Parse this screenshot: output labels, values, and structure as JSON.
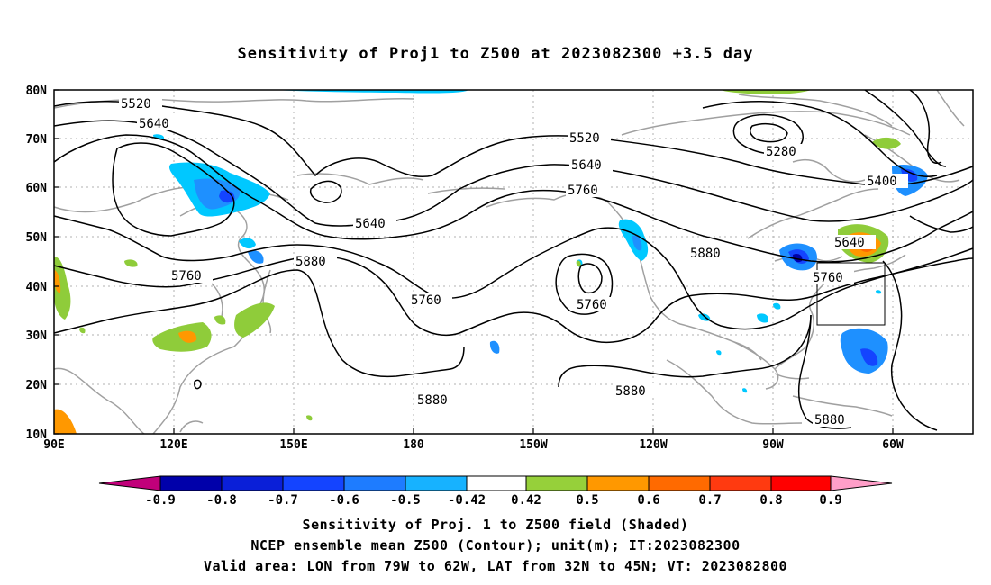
{
  "title": "Sensitivity of Proj1 to Z500 at 2023082300 +3.5 day",
  "axes": {
    "lat_labels": [
      "80N",
      "70N",
      "60N",
      "50N",
      "40N",
      "30N",
      "20N",
      "10N"
    ],
    "lon_labels": [
      "90E",
      "120E",
      "150E",
      "180",
      "150W",
      "120W",
      "90W",
      "60W"
    ]
  },
  "contour_labels": [
    "5520",
    "5640",
    "5520",
    "5640",
    "5280",
    "5400",
    "5760",
    "5640",
    "5640",
    "5760",
    "5880",
    "5760",
    "5760",
    "5880",
    "5760",
    "5880",
    "5880",
    "5880"
  ],
  "colorbar": {
    "labels": [
      "-0.9",
      "-0.8",
      "-0.7",
      "-0.6",
      "-0.5",
      "-0.42",
      "0.42",
      "0.5",
      "0.6",
      "0.7",
      "0.8",
      "0.9"
    ],
    "colors": [
      "#c1007a",
      "#0000aa",
      "#0a1fd8",
      "#1444ff",
      "#1e7cff",
      "#17b2ff",
      "#00d0ff",
      "#ffffff",
      "#96d03a",
      "#ff9800",
      "#ff6a00",
      "#ff3a10",
      "#ff0000",
      "#ff9ec8"
    ]
  },
  "shading_colors": {
    "cyan": "#00c8ff",
    "light_blue": "#1e90ff",
    "blue": "#1444ff",
    "dark_blue": "#0000aa",
    "green": "#8fcc3a",
    "orange": "#ff9800",
    "dark_orange": "#ff6a00",
    "red": "#ff3a10"
  },
  "coastline_color": "#a0a0a0",
  "captions": [
    "Sensitivity of Proj. 1 to Z500 field (Shaded)",
    "NCEP ensemble mean Z500 (Contour); unit(m); IT:2023082300",
    "Valid area: LON from 79W to 62W, LAT from 32N to 45N; VT: 2023082800"
  ]
}
